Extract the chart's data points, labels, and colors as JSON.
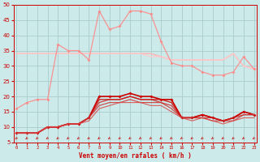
{
  "x": [
    0,
    1,
    2,
    3,
    4,
    5,
    6,
    7,
    8,
    9,
    10,
    11,
    12,
    13,
    14,
    15,
    16,
    17,
    18,
    19,
    20,
    21,
    22,
    23
  ],
  "bg_color": "#cceaea",
  "grid_color": "#aacccc",
  "xlabel": "Vent moyen/en rafales ( km/h )",
  "ylim": [
    5,
    50
  ],
  "yticks": [
    5,
    10,
    15,
    20,
    25,
    30,
    35,
    40,
    45,
    50
  ],
  "series_light": [
    {
      "y": [
        34,
        34,
        34,
        34,
        34,
        34,
        34,
        34,
        34,
        34,
        34,
        34,
        34,
        34,
        33,
        32,
        32,
        32,
        32,
        32,
        32,
        34,
        30,
        29
      ],
      "color": "#ffaaaa",
      "lw": 1.0
    },
    {
      "y": [
        34,
        34,
        34,
        34,
        34,
        34,
        34,
        34,
        34,
        34,
        34,
        34,
        34,
        34,
        33,
        32,
        32,
        32,
        32,
        32,
        32,
        34,
        30,
        29
      ],
      "color": "#ffbbbb",
      "lw": 1.0
    },
    {
      "y": [
        34,
        34,
        34,
        34,
        34,
        34,
        34,
        34,
        34,
        34,
        34,
        34,
        34,
        33,
        33,
        32,
        32,
        32,
        32,
        32,
        32,
        34,
        30,
        29
      ],
      "color": "#ffcccc",
      "lw": 1.0
    }
  ],
  "series_spike": [
    {
      "y": [
        16,
        18,
        19,
        19,
        37,
        35,
        35,
        32,
        48,
        42,
        43,
        48,
        48,
        47,
        38,
        31,
        30,
        30,
        28,
        27,
        27,
        28,
        33,
        29
      ],
      "color": "#ff8888",
      "marker": "D",
      "ms": 2.0,
      "lw": 0.9
    }
  ],
  "series_dark": [
    {
      "y": [
        8,
        8,
        8,
        10,
        10,
        11,
        11,
        13,
        20,
        20,
        20,
        21,
        20,
        20,
        19,
        19,
        13,
        13,
        14,
        13,
        12,
        13,
        15,
        14
      ],
      "color": "#cc0000",
      "marker": "D",
      "ms": 2.0,
      "lw": 1.2
    },
    {
      "y": [
        8,
        8,
        8,
        10,
        10,
        11,
        11,
        13,
        19,
        19,
        19,
        20,
        19,
        19,
        19,
        18,
        13,
        13,
        14,
        13,
        12,
        13,
        15,
        14
      ],
      "color": "#cc0000",
      "lw": 1.0
    },
    {
      "y": [
        8,
        8,
        8,
        10,
        10,
        11,
        11,
        13,
        18,
        19,
        19,
        20,
        19,
        19,
        18,
        17,
        13,
        13,
        13,
        13,
        12,
        13,
        14,
        14
      ],
      "color": "#cc2222",
      "lw": 0.9
    },
    {
      "y": [
        8,
        8,
        8,
        10,
        10,
        11,
        11,
        13,
        17,
        18,
        18,
        19,
        18,
        18,
        18,
        16,
        13,
        13,
        13,
        12,
        12,
        12,
        14,
        14
      ],
      "color": "#cc3333",
      "lw": 0.9
    },
    {
      "y": [
        8,
        8,
        8,
        10,
        10,
        11,
        11,
        12,
        16,
        17,
        18,
        18,
        18,
        17,
        17,
        15,
        13,
        12,
        13,
        12,
        11,
        12,
        13,
        13
      ],
      "color": "#dd4444",
      "lw": 0.8
    }
  ],
  "tick_color": "#cc0000",
  "label_color": "#cc0000"
}
